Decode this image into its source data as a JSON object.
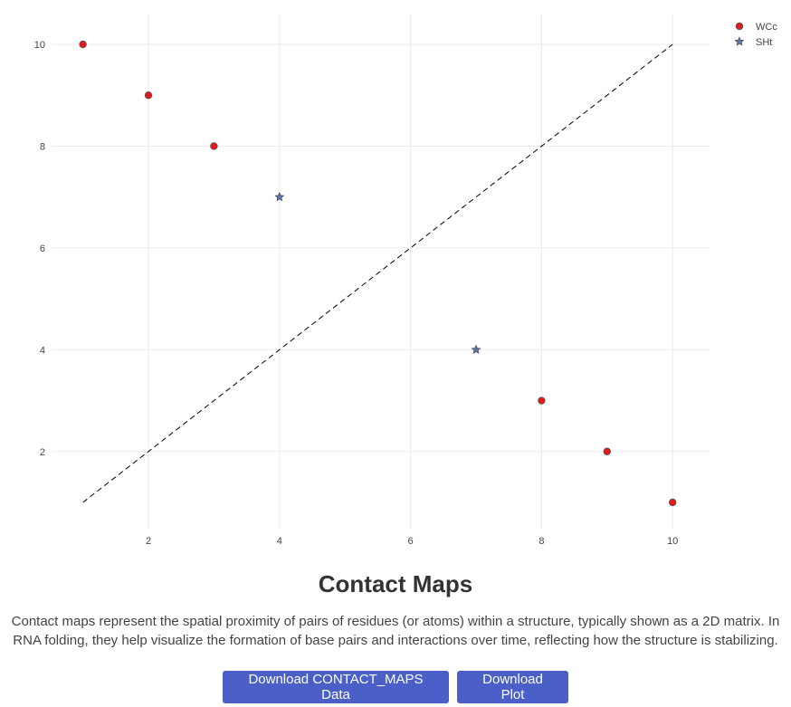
{
  "chart_data": {
    "type": "scatter",
    "title": "",
    "xlabel": "",
    "ylabel": "",
    "xlim": [
      0.4,
      10.6
    ],
    "ylim": [
      0.3,
      10.6
    ],
    "x_ticks": [
      2,
      4,
      6,
      8,
      10
    ],
    "y_ticks": [
      2,
      4,
      6,
      8,
      10
    ],
    "grid": true,
    "legend_position": "top-right",
    "series": [
      {
        "name": "WCc",
        "marker": "circle",
        "color": "#e31a1c",
        "points": [
          [
            1,
            10
          ],
          [
            2,
            9
          ],
          [
            3,
            8
          ],
          [
            8,
            3
          ],
          [
            9,
            2
          ],
          [
            10,
            1
          ]
        ]
      },
      {
        "name": "SHt",
        "marker": "star",
        "color": "#5b7aa8",
        "points": [
          [
            4,
            7
          ],
          [
            7,
            4
          ]
        ]
      }
    ],
    "reference_line": {
      "style": "dashed",
      "color": "#000000",
      "from": [
        1,
        1
      ],
      "to": [
        10,
        10
      ]
    }
  },
  "page": {
    "title": "Contact Maps",
    "description": "Contact maps represent the spatial proximity of pairs of residues (or atoms) within a structure, typically shown as a 2D matrix. In RNA folding, they help visualize the formation of base pairs and interactions over time, reflecting how the structure is stabilizing.",
    "buttons": {
      "download_data": "Download CONTACT_MAPS Data",
      "download_plot": "Download Plot"
    }
  }
}
